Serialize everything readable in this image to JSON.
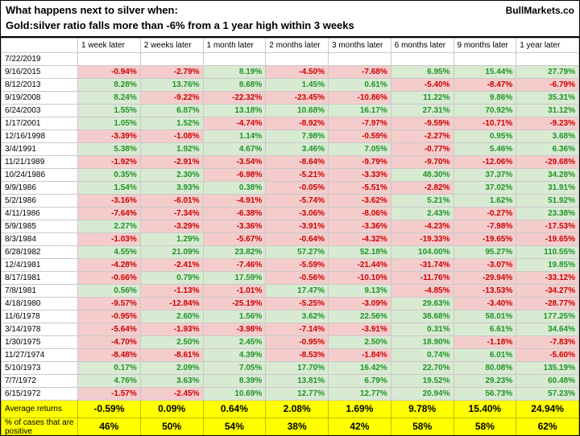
{
  "header": {
    "title_line1": "What happens next to silver when:",
    "title_line2": "Gold:silver ratio falls more than -6% from a 1 year high within 3 weeks",
    "brand": "BullMarkets.co"
  },
  "chart_data": {
    "type": "table",
    "title": "What happens next to silver when: Gold:silver ratio falls more than -6% from a 1 year high within 3 weeks",
    "columns": [
      "",
      "1 week later",
      "2 weeks later",
      "1 month later",
      "2 months later",
      "3 months later",
      "6 months later",
      "9 months later",
      "1 year later"
    ],
    "rows": [
      {
        "date": "7/22/2019",
        "values": [
          "",
          "",
          "",
          "",
          "",
          "",
          "",
          ""
        ]
      },
      {
        "date": "9/16/2015",
        "values": [
          "-0.94%",
          "-2.79%",
          "8.19%",
          "-4.50%",
          "-7.68%",
          "6.95%",
          "15.44%",
          "27.79%"
        ]
      },
      {
        "date": "8/12/2013",
        "values": [
          "8.28%",
          "13.76%",
          "8.68%",
          "1.45%",
          "0.61%",
          "-5.40%",
          "-8.47%",
          "-6.79%"
        ]
      },
      {
        "date": "9/19/2008",
        "values": [
          "8.24%",
          "-9.22%",
          "-22.32%",
          "-23.45%",
          "-10.86%",
          "11.22%",
          "9.86%",
          "35.31%"
        ]
      },
      {
        "date": "6/24/2003",
        "values": [
          "1.55%",
          "6.87%",
          "13.18%",
          "10.68%",
          "16.17%",
          "27.31%",
          "70.92%",
          "31.12%"
        ]
      },
      {
        "date": "1/17/2001",
        "values": [
          "1.05%",
          "1.52%",
          "-4.74%",
          "-8.92%",
          "-7.97%",
          "-9.59%",
          "-10.71%",
          "-9.23%"
        ]
      },
      {
        "date": "12/16/1998",
        "values": [
          "-3.39%",
          "-1.08%",
          "1.14%",
          "7.98%",
          "-0.59%",
          "-2.27%",
          "0.95%",
          "3.68%"
        ]
      },
      {
        "date": "3/4/1991",
        "values": [
          "5.38%",
          "1.92%",
          "4.67%",
          "3.46%",
          "7.05%",
          "-0.77%",
          "5.46%",
          "6.36%"
        ]
      },
      {
        "date": "11/21/1989",
        "values": [
          "-1.92%",
          "-2.91%",
          "-3.54%",
          "-8.64%",
          "-9.79%",
          "-9.70%",
          "-12.06%",
          "-29.68%"
        ]
      },
      {
        "date": "10/24/1986",
        "values": [
          "0.35%",
          "2.30%",
          "-6.98%",
          "-5.21%",
          "-3.33%",
          "48.30%",
          "37.37%",
          "34.28%"
        ]
      },
      {
        "date": "9/9/1986",
        "values": [
          "1.54%",
          "3.93%",
          "0.38%",
          "-0.05%",
          "-5.51%",
          "-2.82%",
          "37.02%",
          "31.91%"
        ]
      },
      {
        "date": "5/2/1986",
        "values": [
          "-3.16%",
          "-6.01%",
          "-4.91%",
          "-5.74%",
          "-3.62%",
          "5.21%",
          "1.62%",
          "51.92%"
        ]
      },
      {
        "date": "4/11/1986",
        "values": [
          "-7.64%",
          "-7.34%",
          "-6.38%",
          "-3.06%",
          "-8.06%",
          "2.43%",
          "-0.27%",
          "23.38%"
        ]
      },
      {
        "date": "5/9/1985",
        "values": [
          "2.27%",
          "-3.29%",
          "-3.36%",
          "-3.91%",
          "-3.36%",
          "-4.23%",
          "-7.98%",
          "-17.53%"
        ]
      },
      {
        "date": "8/3/1984",
        "values": [
          "-1.03%",
          "1.29%",
          "-5.67%",
          "-0.64%",
          "-4.32%",
          "-19.33%",
          "-19.65%",
          "-19.65%"
        ]
      },
      {
        "date": "6/28/1982",
        "values": [
          "4.55%",
          "21.09%",
          "23.82%",
          "57.27%",
          "52.18%",
          "104.00%",
          "95.27%",
          "110.55%"
        ]
      },
      {
        "date": "12/4/1981",
        "values": [
          "-4.28%",
          "-2.41%",
          "-7.46%",
          "-5.59%",
          "-21.44%",
          "-31.74%",
          "-3.07%",
          "19.85%"
        ]
      },
      {
        "date": "8/17/1981",
        "values": [
          "-0.66%",
          "0.79%",
          "17.59%",
          "-0.56%",
          "-10.10%",
          "-11.76%",
          "-29.94%",
          "-33.12%"
        ]
      },
      {
        "date": "7/8/1981",
        "values": [
          "0.56%",
          "-1.13%",
          "-1.01%",
          "17.47%",
          "9.13%",
          "-4.85%",
          "-13.53%",
          "-34.27%"
        ]
      },
      {
        "date": "4/18/1980",
        "values": [
          "-9.57%",
          "-12.84%",
          "-25.19%",
          "-5.25%",
          "-3.09%",
          "29.63%",
          "-3.40%",
          "-28.77%"
        ]
      },
      {
        "date": "11/6/1978",
        "values": [
          "-0.95%",
          "2.60%",
          "1.56%",
          "3.62%",
          "22.56%",
          "38.68%",
          "58.01%",
          "177.25%"
        ]
      },
      {
        "date": "3/14/1978",
        "values": [
          "-5.64%",
          "-1.93%",
          "-3.98%",
          "-7.14%",
          "-3.91%",
          "0.31%",
          "6.61%",
          "34.64%"
        ]
      },
      {
        "date": "1/30/1975",
        "values": [
          "-4.70%",
          "2.50%",
          "2.45%",
          "-0.95%",
          "2.50%",
          "18.90%",
          "-1.18%",
          "-7.83%"
        ]
      },
      {
        "date": "11/27/1974",
        "values": [
          "-8.48%",
          "-8.61%",
          "4.39%",
          "-8.53%",
          "-1.84%",
          "0.74%",
          "6.01%",
          "-5.60%"
        ]
      },
      {
        "date": "5/10/1973",
        "values": [
          "0.17%",
          "2.09%",
          "7.05%",
          "17.70%",
          "16.42%",
          "22.70%",
          "80.08%",
          "135.19%"
        ]
      },
      {
        "date": "7/7/1972",
        "values": [
          "4.76%",
          "3.63%",
          "8.39%",
          "13.81%",
          "6.79%",
          "19.52%",
          "29.23%",
          "60.48%"
        ]
      },
      {
        "date": "6/15/1972",
        "values": [
          "-1.57%",
          "-2.45%",
          "10.69%",
          "12.77%",
          "12.77%",
          "20.94%",
          "56.73%",
          "57.23%"
        ]
      }
    ],
    "summary_rows": [
      {
        "label": "Average returns",
        "values": [
          "-0.59%",
          "0.09%",
          "0.64%",
          "2.08%",
          "1.69%",
          "9.78%",
          "15.40%",
          "24.94%"
        ]
      },
      {
        "label": "% of cases that are positive",
        "values": [
          "46%",
          "50%",
          "54%",
          "38%",
          "42%",
          "58%",
          "58%",
          "62%"
        ]
      }
    ]
  },
  "colors": {
    "positive_bg": "#d9ead3",
    "positive_text": "#1f9527",
    "negative_bg": "#f4cccc",
    "negative_text": "#cc0000",
    "summary_bg": "#ffff00"
  }
}
